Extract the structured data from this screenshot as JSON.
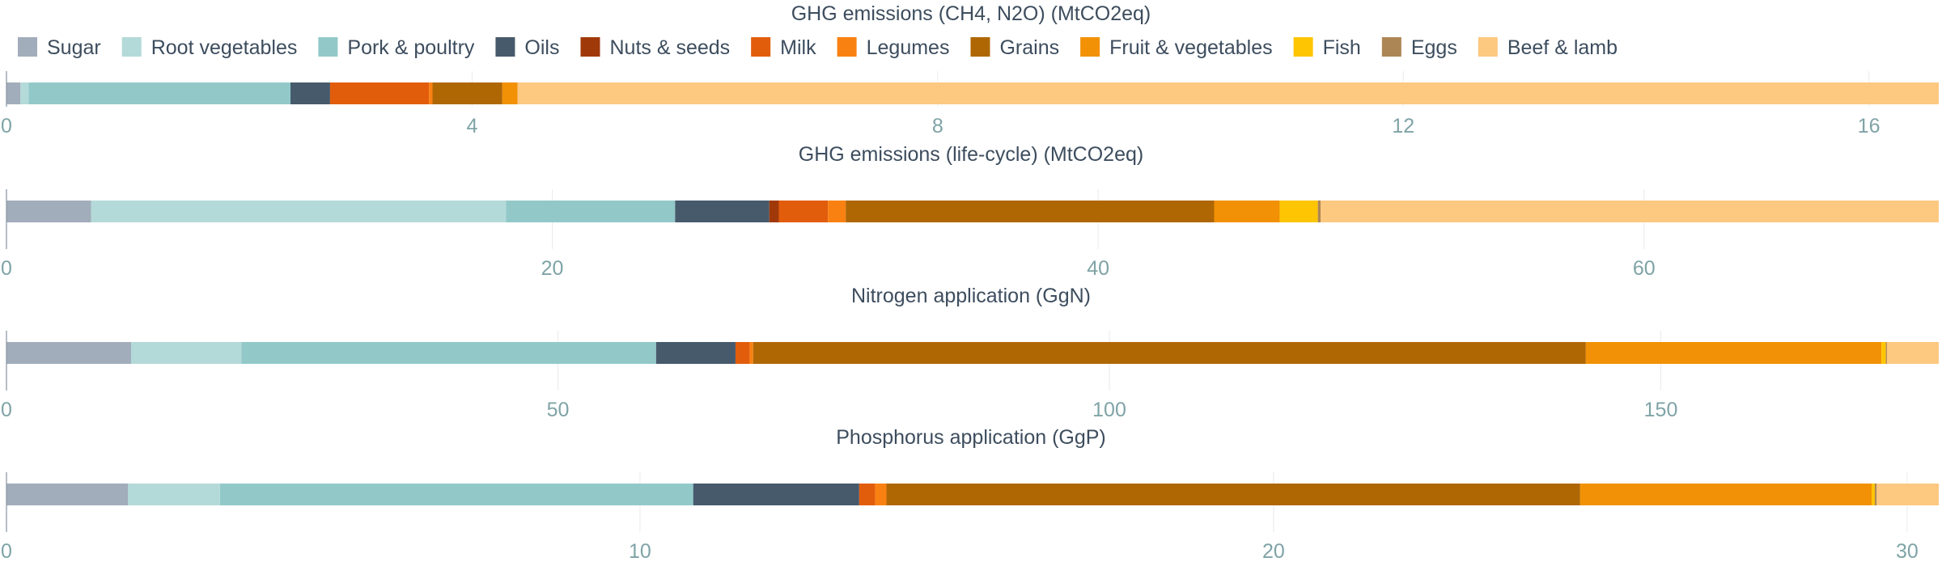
{
  "legend": [
    {
      "name": "Sugar",
      "color": "#a1adba"
    },
    {
      "name": "Root vegetables",
      "color": "#b3dad9"
    },
    {
      "name": "Pork & poultry",
      "color": "#92c9c8"
    },
    {
      "name": "Oils",
      "color": "#465a6c"
    },
    {
      "name": "Nuts & seeds",
      "color": "#a0390a"
    },
    {
      "name": "Milk",
      "color": "#e25d0b"
    },
    {
      "name": "Legumes",
      "color": "#f98112"
    },
    {
      "name": "Grains",
      "color": "#af6704"
    },
    {
      "name": "Fruit & vegetables",
      "color": "#f29105"
    },
    {
      "name": "Fish",
      "color": "#fec502"
    },
    {
      "name": "Eggs",
      "color": "#ad8655"
    },
    {
      "name": "Beef & lamb",
      "color": "#fdc880"
    }
  ],
  "chart_data": [
    {
      "type": "bar",
      "orientation": "horizontal",
      "stacked": true,
      "title": "GHG emissions (CH4, N2O) (MtCO2eq)",
      "xlim": [
        0,
        16.6
      ],
      "ticks": [
        0,
        4,
        8,
        12,
        16
      ],
      "grid": true,
      "legend_position": "top",
      "series": [
        {
          "name": "Sugar",
          "value": 0.12
        },
        {
          "name": "Root vegetables",
          "value": 0.07
        },
        {
          "name": "Pork & poultry",
          "value": 2.25
        },
        {
          "name": "Oils",
          "value": 0.34
        },
        {
          "name": "Nuts & seeds",
          "value": 0.0
        },
        {
          "name": "Milk",
          "value": 0.85
        },
        {
          "name": "Legumes",
          "value": 0.03
        },
        {
          "name": "Grains",
          "value": 0.6
        },
        {
          "name": "Fruit & vegetables",
          "value": 0.13
        },
        {
          "name": "Fish",
          "value": 0.0
        },
        {
          "name": "Eggs",
          "value": 0.0
        },
        {
          "name": "Beef & lamb",
          "value": 12.21
        }
      ]
    },
    {
      "type": "bar",
      "orientation": "horizontal",
      "stacked": true,
      "title": "GHG emissions (life-cycle) (MtCO2eq)",
      "xlim": [
        0,
        70.8
      ],
      "ticks": [
        0,
        20,
        40,
        60
      ],
      "grid": true,
      "series": [
        {
          "name": "Sugar",
          "value": 3.1
        },
        {
          "name": "Root vegetables",
          "value": 15.2
        },
        {
          "name": "Pork & poultry",
          "value": 6.2
        },
        {
          "name": "Oils",
          "value": 3.45
        },
        {
          "name": "Nuts & seeds",
          "value": 0.35
        },
        {
          "name": "Milk",
          "value": 1.8
        },
        {
          "name": "Legumes",
          "value": 0.65
        },
        {
          "name": "Grains",
          "value": 13.5
        },
        {
          "name": "Fruit & vegetables",
          "value": 2.4
        },
        {
          "name": "Fish",
          "value": 1.4
        },
        {
          "name": "Eggs",
          "value": 0.1
        },
        {
          "name": "Beef & lamb",
          "value": 22.65
        }
      ]
    },
    {
      "type": "bar",
      "orientation": "horizontal",
      "stacked": true,
      "title": "Nitrogen application (GgN)",
      "xlim": [
        0,
        175.2
      ],
      "ticks": [
        0,
        50,
        100,
        150
      ],
      "grid": true,
      "series": [
        {
          "name": "Sugar",
          "value": 11.3
        },
        {
          "name": "Root vegetables",
          "value": 10.0
        },
        {
          "name": "Pork & poultry",
          "value": 37.6
        },
        {
          "name": "Oils",
          "value": 7.2
        },
        {
          "name": "Nuts & seeds",
          "value": 0.0
        },
        {
          "name": "Milk",
          "value": 1.3
        },
        {
          "name": "Legumes",
          "value": 0.3
        },
        {
          "name": "Grains",
          "value": 75.5
        },
        {
          "name": "Fruit & vegetables",
          "value": 26.8
        },
        {
          "name": "Fish",
          "value": 0.4
        },
        {
          "name": "Eggs",
          "value": 0.1
        },
        {
          "name": "Beef & lamb",
          "value": 4.7
        }
      ]
    },
    {
      "type": "bar",
      "orientation": "horizontal",
      "stacked": true,
      "title": "Phosphorus application (GgP)",
      "xlim": [
        0,
        30.5
      ],
      "ticks": [
        0,
        10,
        20,
        30
      ],
      "grid": true,
      "series": [
        {
          "name": "Sugar",
          "value": 1.92
        },
        {
          "name": "Root vegetables",
          "value": 1.45
        },
        {
          "name": "Pork & poultry",
          "value": 7.47
        },
        {
          "name": "Oils",
          "value": 2.62
        },
        {
          "name": "Nuts & seeds",
          "value": 0.0
        },
        {
          "name": "Milk",
          "value": 0.25
        },
        {
          "name": "Legumes",
          "value": 0.18
        },
        {
          "name": "Grains",
          "value": 10.95
        },
        {
          "name": "Fruit & vegetables",
          "value": 4.6
        },
        {
          "name": "Fish",
          "value": 0.05
        },
        {
          "name": "Eggs",
          "value": 0.03
        },
        {
          "name": "Beef & lamb",
          "value": 0.98
        }
      ]
    }
  ]
}
